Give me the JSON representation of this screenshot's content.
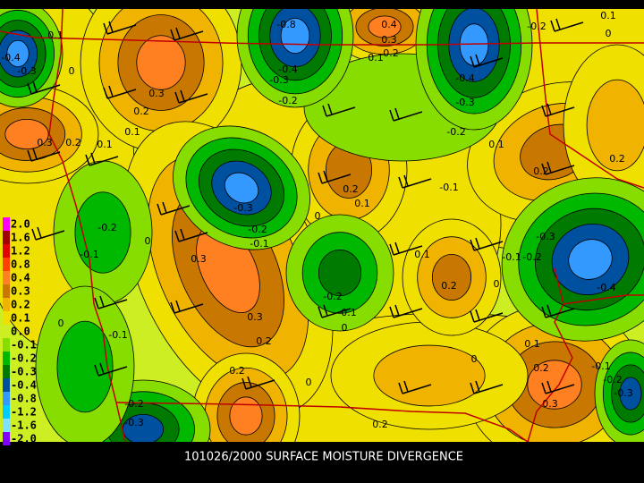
{
  "caption": "101026/2000 SURFACE MOISTURE DIVERGENCE",
  "legend": [
    {
      "label": "2.0",
      "color": "#ff00ff"
    },
    {
      "label": "1.6",
      "color": "#a00000"
    },
    {
      "label": "1.2",
      "color": "#e00000"
    },
    {
      "label": "0.8",
      "color": "#ff4000"
    },
    {
      "label": "0.4",
      "color": "#ff8020"
    },
    {
      "label": "0.3",
      "color": "#c87800"
    },
    {
      "label": "0.2",
      "color": "#f0b400"
    },
    {
      "label": "0.1",
      "color": "#f0e000"
    },
    {
      "label": "0.0",
      "color": "#ccee22"
    },
    {
      "label": "-0.1",
      "color": "#88dd00"
    },
    {
      "label": "-0.2",
      "color": "#00b800"
    },
    {
      "label": "-0.3",
      "color": "#007a00"
    },
    {
      "label": "-0.4",
      "color": "#0050a0"
    },
    {
      "label": "-0.8",
      "color": "#3399ff"
    },
    {
      "label": "-1.2",
      "color": "#00ccff"
    },
    {
      "label": "-1.6",
      "color": "#80e0ff"
    },
    {
      "label": "-2.0",
      "color": "#8000ff"
    }
  ],
  "contour_labels": [
    "-0.8",
    "0.4",
    "0.3",
    "0.2",
    "0.1",
    "-0.2",
    "0.1",
    "0",
    "0.1",
    "-0.4",
    "-0.3",
    "0",
    "0.3",
    "0.2",
    "0.1",
    "0.3",
    "0.2",
    "0.1",
    "-0.4",
    "-0.3",
    "-0.2",
    "-0.4",
    "-0.3",
    "-0.2",
    "0.1",
    "0.2",
    "0.2",
    "0.2",
    "0.1",
    "0",
    "-0.1",
    "-0.3",
    "-0.2",
    "-0.1",
    "-0.2",
    "-0.1",
    "0",
    "0.3",
    "0.3",
    "0.2",
    "-0.1",
    "0",
    "0.1",
    "0.2",
    "0",
    "-0.3",
    "-0.2",
    "-0.1",
    "-0.4",
    "-0.2",
    "-0.1",
    "0",
    "0.1",
    "0",
    "0.2",
    "0.3",
    "-0.1",
    "-0.2",
    "-0.3",
    "0.2",
    "0",
    "-0.2",
    "-0.3",
    "0.2"
  ]
}
